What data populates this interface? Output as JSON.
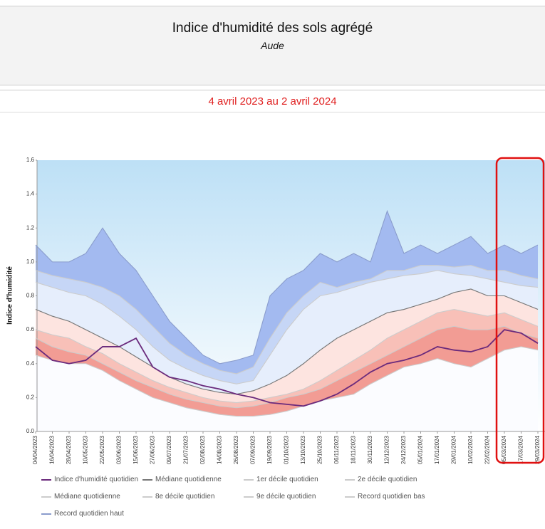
{
  "chart_data": {
    "type": "line",
    "title": "Indice d'humidité des sols agrégé",
    "subtitle": "Aude",
    "period": "4 avril 2023 au 2 avril 2024",
    "y_label": "Indice d'humidité",
    "categories": [
      "04/04/2023",
      "16/04/2023",
      "28/04/2023",
      "10/05/2023",
      "22/05/2023",
      "03/06/2023",
      "15/06/2023",
      "27/06/2023",
      "09/07/2023",
      "21/07/2023",
      "02/08/2023",
      "14/08/2023",
      "26/08/2023",
      "07/09/2023",
      "19/09/2023",
      "01/10/2023",
      "13/10/2023",
      "25/10/2023",
      "06/11/2023",
      "18/11/2023",
      "30/11/2023",
      "12/12/2023",
      "24/12/2023",
      "05/01/2024",
      "17/01/2024",
      "29/01/2024",
      "10/02/2024",
      "22/02/2024",
      "05/03/2024",
      "17/03/2024",
      "29/03/2024"
    ],
    "ylim": [
      0,
      1.6
    ],
    "yticks": [
      {
        "value": 0,
        "label": "0.0"
      },
      0.2,
      0.4,
      0.6,
      0.8,
      {
        "value": 1,
        "label": "1.0"
      },
      1.2,
      1.4,
      1.6
    ],
    "series": [
      {
        "name": "Indice d'humidité quotidien",
        "color": "#6a2a7c",
        "values": [
          0.5,
          0.42,
          0.4,
          0.42,
          0.5,
          0.5,
          0.55,
          0.38,
          0.32,
          0.3,
          0.27,
          0.25,
          0.22,
          0.2,
          0.17,
          0.16,
          0.15,
          0.18,
          0.22,
          0.28,
          0.35,
          0.4,
          0.42,
          0.45,
          0.5,
          0.48,
          0.47,
          0.5,
          0.6,
          0.58,
          0.52
        ]
      },
      {
        "name": "Médiane quotidienne",
        "color": "#777777",
        "values": [
          0.72,
          0.68,
          0.65,
          0.6,
          0.55,
          0.5,
          0.44,
          0.38,
          0.32,
          0.28,
          0.25,
          0.23,
          0.22,
          0.24,
          0.28,
          0.33,
          0.4,
          0.48,
          0.55,
          0.6,
          0.65,
          0.7,
          0.72,
          0.75,
          0.78,
          0.82,
          0.84,
          0.8,
          0.8,
          0.76,
          0.72
        ]
      },
      {
        "name": "1er décile quotidien",
        "color": "#cccccc",
        "fill": "#f29c94",
        "values": [
          0.55,
          0.5,
          0.47,
          0.45,
          0.4,
          0.35,
          0.3,
          0.26,
          0.22,
          0.19,
          0.17,
          0.15,
          0.14,
          0.15,
          0.17,
          0.2,
          0.22,
          0.25,
          0.3,
          0.35,
          0.4,
          0.45,
          0.5,
          0.55,
          0.6,
          0.62,
          0.6,
          0.6,
          0.62,
          0.58,
          0.55
        ]
      },
      {
        "name": "2e décile quotidien",
        "color": "#cccccc",
        "fill": "#f8c0b8",
        "values": [
          0.6,
          0.57,
          0.55,
          0.5,
          0.46,
          0.4,
          0.35,
          0.3,
          0.26,
          0.23,
          0.2,
          0.18,
          0.17,
          0.18,
          0.2,
          0.22,
          0.25,
          0.3,
          0.36,
          0.42,
          0.48,
          0.55,
          0.6,
          0.65,
          0.7,
          0.72,
          0.7,
          0.68,
          0.7,
          0.66,
          0.62
        ]
      },
      {
        "name": "Médiane quotidienne",
        "color": "#cccccc",
        "fill": "#fde4e0",
        "values": [
          0.72,
          0.68,
          0.65,
          0.6,
          0.55,
          0.5,
          0.44,
          0.38,
          0.32,
          0.28,
          0.25,
          0.23,
          0.22,
          0.24,
          0.28,
          0.33,
          0.4,
          0.48,
          0.55,
          0.6,
          0.65,
          0.7,
          0.72,
          0.75,
          0.78,
          0.82,
          0.84,
          0.8,
          0.8,
          0.76,
          0.72
        ]
      },
      {
        "name": "8e décile quotidien",
        "color": "#cccccc",
        "fill": "#e6eefc",
        "values": [
          0.88,
          0.85,
          0.82,
          0.8,
          0.75,
          0.68,
          0.6,
          0.5,
          0.42,
          0.37,
          0.33,
          0.3,
          0.28,
          0.3,
          0.45,
          0.6,
          0.72,
          0.8,
          0.82,
          0.85,
          0.88,
          0.9,
          0.92,
          0.93,
          0.95,
          0.93,
          0.92,
          0.9,
          0.88,
          0.86,
          0.85
        ]
      },
      {
        "name": "9e décile quotidien",
        "color": "#cccccc",
        "fill": "#c6d6f6",
        "values": [
          0.95,
          0.92,
          0.9,
          0.88,
          0.85,
          0.8,
          0.72,
          0.62,
          0.52,
          0.45,
          0.4,
          0.36,
          0.34,
          0.38,
          0.55,
          0.7,
          0.8,
          0.88,
          0.85,
          0.88,
          0.9,
          0.95,
          0.95,
          0.98,
          0.98,
          0.97,
          0.98,
          0.95,
          0.95,
          0.92,
          0.9
        ]
      },
      {
        "name": "Record quotidien bas",
        "color": "#cccccc",
        "fill": "#fbfcff",
        "values": [
          0.45,
          0.42,
          0.4,
          0.4,
          0.36,
          0.3,
          0.25,
          0.2,
          0.17,
          0.14,
          0.12,
          0.1,
          0.09,
          0.09,
          0.1,
          0.12,
          0.15,
          0.18,
          0.2,
          0.22,
          0.28,
          0.33,
          0.38,
          0.4,
          0.43,
          0.4,
          0.38,
          0.43,
          0.48,
          0.5,
          0.48
        ]
      },
      {
        "name": "Record quotidien haut",
        "color": "#8a9ccc",
        "fill": "#a3baf0",
        "values": [
          1.1,
          1.0,
          1.0,
          1.05,
          1.2,
          1.05,
          0.95,
          0.8,
          0.65,
          0.55,
          0.45,
          0.4,
          0.42,
          0.45,
          0.8,
          0.9,
          0.95,
          1.05,
          1.0,
          1.05,
          1.0,
          1.3,
          1.05,
          1.1,
          1.05,
          1.1,
          1.15,
          1.05,
          1.1,
          1.05,
          1.1
        ]
      }
    ]
  }
}
